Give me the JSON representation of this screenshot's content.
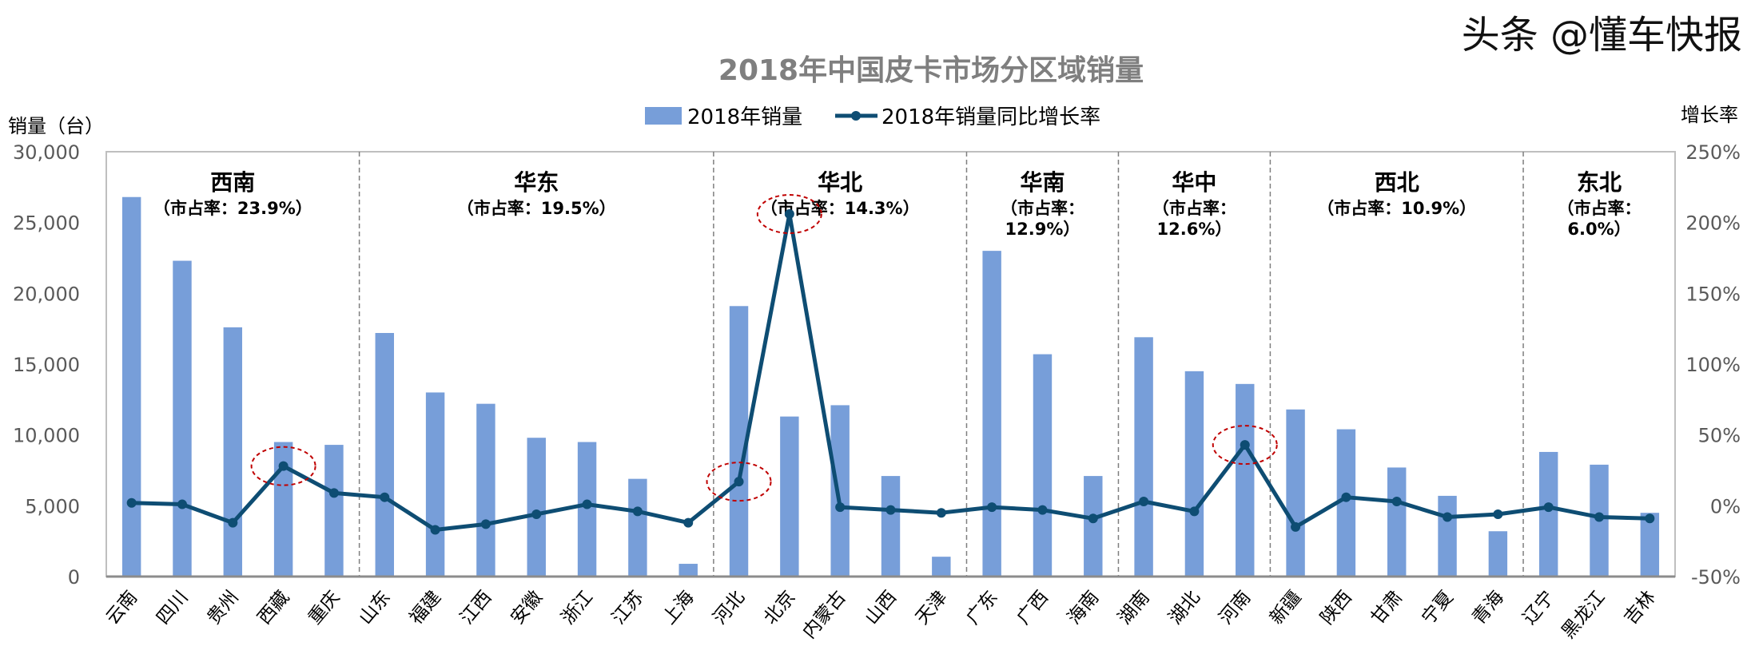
{
  "chart_data": {
    "type": "bar+line",
    "title": "2018年中国皮卡市场分区域销量",
    "ylabel_left": "销量（台）",
    "ylabel_right": "增长率",
    "ylim_left": [
      0,
      30000
    ],
    "ylim_right": [
      -50,
      250
    ],
    "yticks_left": [
      "0",
      "5,000",
      "10,000",
      "15,000",
      "20,000",
      "25,000",
      "30,000"
    ],
    "yticks_right": [
      "-50%",
      "0%",
      "50%",
      "100%",
      "150%",
      "200%",
      "250%"
    ],
    "grid": false,
    "legend_position": "top",
    "colors": {
      "bar": "#779ED9",
      "line": "#0E4D73",
      "highlight": "#C00000"
    },
    "categories": [
      "云南",
      "四川",
      "贵州",
      "西藏",
      "重庆",
      "山东",
      "福建",
      "江西",
      "安徽",
      "浙江",
      "江苏",
      "上海",
      "河北",
      "北京",
      "内蒙古",
      "山西",
      "天津",
      "广东",
      "广西",
      "海南",
      "湖南",
      "湖北",
      "河南",
      "新疆",
      "陕西",
      "甘肃",
      "宁夏",
      "青海",
      "辽宁",
      "黑龙江",
      "吉林"
    ],
    "series": [
      {
        "name": "2018年销量",
        "type": "bar",
        "axis": "left",
        "values": [
          26800,
          22300,
          17600,
          9500,
          9300,
          17200,
          13000,
          12200,
          9800,
          9500,
          6900,
          900,
          19100,
          11300,
          12100,
          7100,
          1400,
          23000,
          15700,
          7100,
          16900,
          14500,
          13600,
          11800,
          10400,
          7700,
          5700,
          3200,
          8800,
          7900,
          4500
        ]
      },
      {
        "name": "2018年销量同比增长率",
        "type": "line",
        "axis": "right",
        "unit": "%",
        "values": [
          2,
          1,
          -12,
          28,
          9,
          6,
          -17,
          -13,
          -6,
          1,
          -4,
          -12,
          17,
          206,
          -1,
          -3,
          -5,
          -1,
          -3,
          -9,
          3,
          -4,
          43,
          -15,
          6,
          3,
          -8,
          -6,
          -1,
          -8,
          -9
        ]
      }
    ],
    "highlighted_categories": [
      "西藏",
      "河北",
      "北京",
      "河南"
    ],
    "regions": [
      {
        "name": "西南",
        "share": "（市占率：23.9%）",
        "count": 5
      },
      {
        "name": "华东",
        "share": "（市占率：19.5%）",
        "count": 7
      },
      {
        "name": "华北",
        "share": "（市占率：14.3%）",
        "count": 5
      },
      {
        "name": "华南",
        "share": "（市占率：12.9%）",
        "count": 3
      },
      {
        "name": "华中",
        "share": "（市占率：12.6%）",
        "count": 3
      },
      {
        "name": "西北",
        "share": "（市占率：10.9%）",
        "count": 5
      },
      {
        "name": "东北",
        "share": "（市占率：6.0%）",
        "count": 3
      }
    ]
  },
  "watermark": "头条 @懂车快报"
}
